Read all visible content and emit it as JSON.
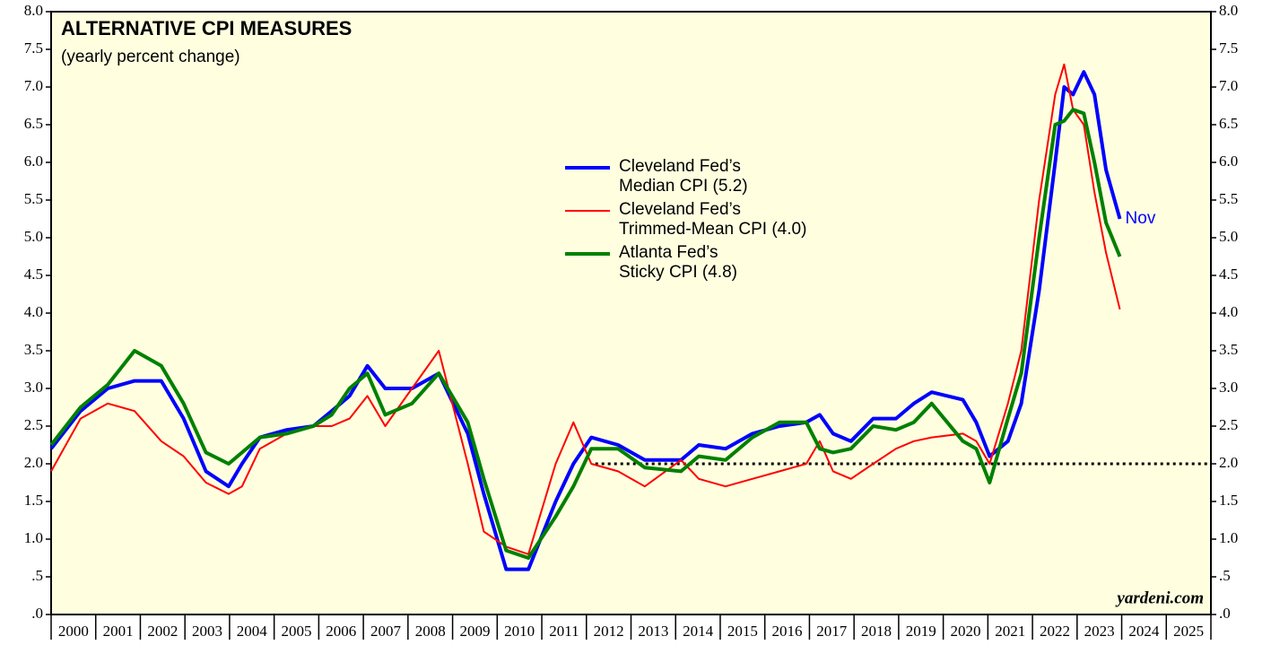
{
  "chart_data": {
    "type": "line",
    "title": "ALTERNATIVE CPI MEASURES",
    "subtitle": "(yearly percent change)",
    "source": "yardeni.com",
    "end_label": "Nov",
    "x": [
      2000.0,
      2000.66,
      2001.27,
      2001.87,
      2002.47,
      2002.97,
      2003.47,
      2003.98,
      2004.28,
      2004.68,
      2005.28,
      2005.88,
      2006.29,
      2006.69,
      2007.09,
      2007.49,
      2008.09,
      2008.69,
      2009.34,
      2009.7,
      2010.2,
      2010.7,
      2011.31,
      2011.71,
      2012.11,
      2012.71,
      2013.31,
      2014.12,
      2014.52,
      2015.12,
      2015.72,
      2016.33,
      2016.93,
      2017.23,
      2017.53,
      2017.93,
      2018.43,
      2018.94,
      2019.34,
      2019.74,
      2020.44,
      2020.74,
      2021.04,
      2021.45,
      2021.75,
      2022.15,
      2022.51,
      2022.71,
      2022.91,
      2023.15,
      2023.39,
      2023.65,
      2023.96
    ],
    "series": [
      {
        "name": "Cleveland Fed’s\nMedian CPI (5.2)",
        "color": "#0000ff",
        "width": 4,
        "values": [
          2.2,
          2.7,
          3.0,
          3.1,
          3.1,
          2.6,
          1.9,
          1.7,
          2.0,
          2.35,
          2.45,
          2.5,
          2.7,
          2.9,
          3.3,
          3.0,
          3.0,
          3.2,
          2.4,
          1.6,
          0.6,
          0.6,
          1.5,
          2.0,
          2.35,
          2.25,
          2.05,
          2.05,
          2.25,
          2.2,
          2.4,
          2.5,
          2.55,
          2.65,
          2.4,
          2.3,
          2.6,
          2.6,
          2.8,
          2.95,
          2.85,
          2.55,
          2.1,
          2.3,
          2.8,
          4.3,
          6.0,
          7.0,
          6.9,
          7.2,
          6.9,
          5.9,
          5.25
        ]
      },
      {
        "name": "Cleveland Fed’s\nTrimmed-Mean CPI (4.0)",
        "color": "#ff0000",
        "width": 2,
        "values": [
          1.9,
          2.6,
          2.8,
          2.7,
          2.3,
          2.1,
          1.75,
          1.6,
          1.7,
          2.2,
          2.4,
          2.5,
          2.5,
          2.6,
          2.9,
          2.5,
          3.0,
          3.5,
          2.0,
          1.1,
          0.9,
          0.8,
          2.0,
          2.55,
          2.0,
          1.9,
          1.7,
          2.05,
          1.8,
          1.7,
          1.8,
          1.9,
          2.0,
          2.3,
          1.9,
          1.8,
          2.0,
          2.2,
          2.3,
          2.35,
          2.4,
          2.3,
          2.0,
          2.8,
          3.5,
          5.5,
          6.9,
          7.3,
          6.7,
          6.5,
          5.6,
          4.8,
          4.05
        ]
      },
      {
        "name": "Atlanta Fed’s\nSticky CPI (4.8)",
        "color": "#008000",
        "width": 4,
        "values": [
          2.25,
          2.75,
          3.05,
          3.5,
          3.3,
          2.8,
          2.15,
          2.0,
          2.15,
          2.35,
          2.4,
          2.5,
          2.65,
          3.0,
          3.2,
          2.65,
          2.8,
          3.2,
          2.55,
          1.8,
          0.85,
          0.75,
          1.3,
          1.7,
          2.2,
          2.2,
          1.95,
          1.9,
          2.1,
          2.05,
          2.35,
          2.55,
          2.55,
          2.2,
          2.15,
          2.2,
          2.5,
          2.45,
          2.55,
          2.8,
          2.3,
          2.2,
          1.75,
          2.6,
          3.2,
          5.0,
          6.5,
          6.55,
          6.7,
          6.65,
          6.0,
          5.2,
          4.75
        ]
      }
    ],
    "reference_line": {
      "y": 2,
      "x_start": 2012.2
    },
    "xlim": [
      2000,
      2026
    ],
    "xticks": [
      2000,
      2001,
      2002,
      2003,
      2004,
      2005,
      2006,
      2007,
      2008,
      2009,
      2010,
      2011,
      2012,
      2013,
      2014,
      2015,
      2016,
      2017,
      2018,
      2019,
      2020,
      2021,
      2022,
      2023,
      2024,
      2025
    ],
    "ylim": [
      0,
      8
    ],
    "yticks": [
      {
        "value": 0,
        "label": ".0"
      },
      {
        "value": 0.5,
        "label": ".5"
      },
      {
        "value": 1,
        "label": "1.0"
      },
      1.5,
      {
        "value": 2,
        "label": "2.0"
      },
      2.5,
      {
        "value": 3,
        "label": "3.0"
      },
      3.5,
      {
        "value": 4,
        "label": "4.0"
      },
      4.5,
      {
        "value": 5,
        "label": "5.0"
      },
      5.5,
      {
        "value": 6,
        "label": "6.0"
      },
      6.5,
      {
        "value": 7,
        "label": "7.0"
      },
      7.5,
      {
        "value": 8,
        "label": "8.0"
      }
    ],
    "background": "#ffffe0"
  }
}
